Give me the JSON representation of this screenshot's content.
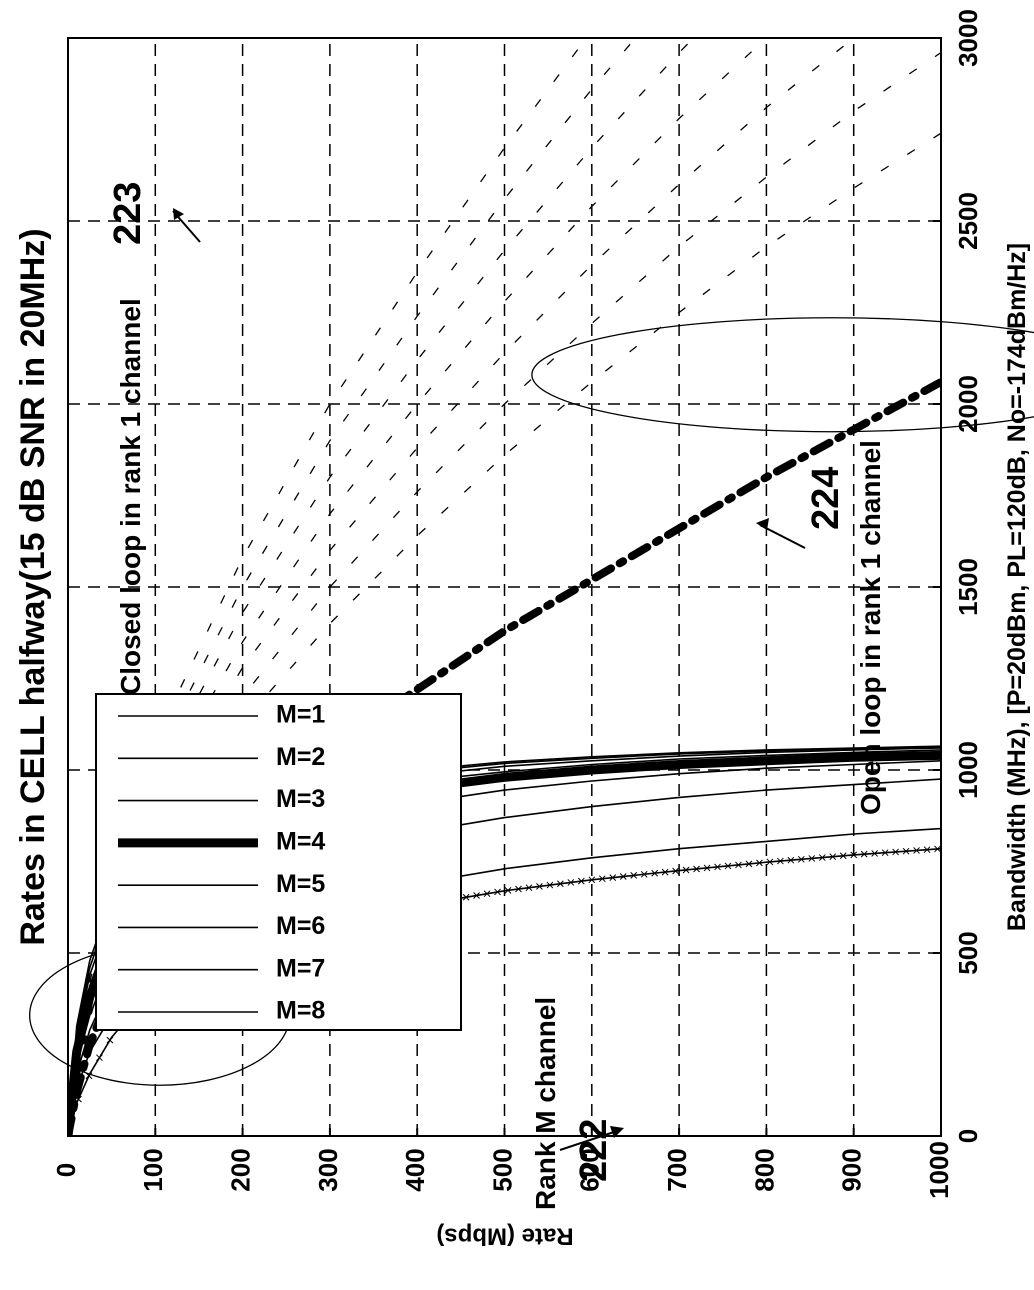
{
  "chart_data": {
    "type": "line",
    "title": "Rates in CELL halfway(15 dB SNR in 20MHz)",
    "xlabel": "Bandwidth (MHz), [P=20dBm, PL=120dB, No=-174dBm/Hz]",
    "ylabel": "Rate (Mbps)",
    "xlim": [
      0,
      1000
    ],
    "ylim": [
      0,
      3000
    ],
    "x_ticks": [
      "0",
      "100",
      "200",
      "300",
      "400",
      "500",
      "600",
      "700",
      "800",
      "900",
      "1000"
    ],
    "y_ticks": [
      "0",
      "500",
      "1000",
      "1500",
      "2000",
      "2500",
      "3000"
    ],
    "grid": true,
    "legend_position": "bottom-left",
    "x": [
      0,
      10,
      25,
      50,
      75,
      100,
      150,
      200,
      300,
      400,
      500,
      600,
      700,
      800,
      900,
      1000
    ],
    "series": [
      {
        "name": "M=1",
        "style": "solid",
        "values": [
          0,
          130,
          230,
          330,
          400,
          450,
          520,
          570,
          640,
          690,
          730,
          760,
          785,
          805,
          825,
          840
        ]
      },
      {
        "name": "M=2",
        "style": "solid",
        "values": [
          0,
          170,
          290,
          420,
          500,
          560,
          640,
          700,
          780,
          830,
          870,
          900,
          925,
          945,
          960,
          975
        ]
      },
      {
        "name": "M=3",
        "style": "solid",
        "values": [
          0,
          200,
          330,
          480,
          570,
          640,
          720,
          780,
          860,
          910,
          945,
          970,
          990,
          1005,
          1015,
          1025
        ]
      },
      {
        "name": "M=4",
        "style": "thick",
        "values": [
          0,
          230,
          380,
          540,
          640,
          700,
          780,
          830,
          900,
          950,
          980,
          1000,
          1015,
          1025,
          1035,
          1040
        ]
      },
      {
        "name": "M=5",
        "style": "solid",
        "values": [
          0,
          250,
          410,
          580,
          680,
          740,
          820,
          870,
          930,
          970,
          995,
          1015,
          1030,
          1040,
          1048,
          1055
        ]
      },
      {
        "name": "M=6",
        "style": "solid",
        "values": [
          0,
          270,
          440,
          610,
          710,
          770,
          850,
          890,
          950,
          985,
          1010,
          1025,
          1038,
          1048,
          1055,
          1060
        ]
      },
      {
        "name": "M=7",
        "style": "solid",
        "values": [
          0,
          285,
          460,
          635,
          730,
          790,
          865,
          905,
          960,
          995,
          1018,
          1032,
          1044,
          1052,
          1058,
          1062
        ]
      },
      {
        "name": "M=8",
        "style": "solid",
        "values": [
          0,
          300,
          480,
          650,
          745,
          805,
          875,
          915,
          965,
          1000,
          1022,
          1036,
          1047,
          1055,
          1060,
          1065
        ]
      }
    ],
    "closed_loop_rank1": {
      "style": "dash-dot-thick",
      "values": [
        0,
        120,
        250,
        400,
        510,
        600,
        750,
        870,
        1060,
        1220,
        1380,
        1520,
        1660,
        1800,
        1930,
        2060
      ]
    },
    "closed_loop_rank1_family": {
      "style": "dashed",
      "x": [
        0,
        25,
        50,
        100,
        200,
        300,
        400,
        500,
        600,
        700,
        800,
        900,
        1000
      ],
      "curves": [
        [
          0,
          320,
          520,
          780,
          1130,
          1400,
          1640,
          1860,
          2060,
          2250,
          2430,
          2590,
          2740
        ],
        [
          0,
          340,
          550,
          830,
          1200,
          1500,
          1760,
          2000,
          2220,
          2430,
          2620,
          2800,
          2960
        ],
        [
          0,
          360,
          580,
          880,
          1280,
          1600,
          1880,
          2140,
          2380,
          2600,
          2810,
          3000,
          3180
        ],
        [
          0,
          380,
          610,
          930,
          1350,
          1700,
          2000,
          2280,
          2540,
          2780,
          3000,
          3200,
          3400
        ],
        [
          0,
          400,
          640,
          980,
          1430,
          1800,
          2120,
          2420,
          2700,
          2960,
          3200,
          3420,
          3620
        ],
        [
          0,
          420,
          680,
          1030,
          1500,
          1900,
          2240,
          2560,
          2860,
          3140,
          3400,
          3640,
          3860
        ],
        [
          0,
          440,
          710,
          1080,
          1580,
          2000,
          2360,
          2700,
          3020,
          3320,
          3600,
          3860,
          4100
        ]
      ]
    },
    "open_loop_rank1": {
      "style": "solid-with-x-markers",
      "values": [
        0,
        90,
        170,
        270,
        340,
        390,
        460,
        510,
        580,
        630,
        670,
        700,
        725,
        748,
        768,
        785
      ]
    },
    "annotations": {
      "closed_loop": "Closed loop in rank 1 channel",
      "ref_223": "223",
      "rank_m": "Rank M channel",
      "ref_222": "222",
      "open_loop": "Open loop in rank 1 channel",
      "ref_224": "224"
    }
  }
}
